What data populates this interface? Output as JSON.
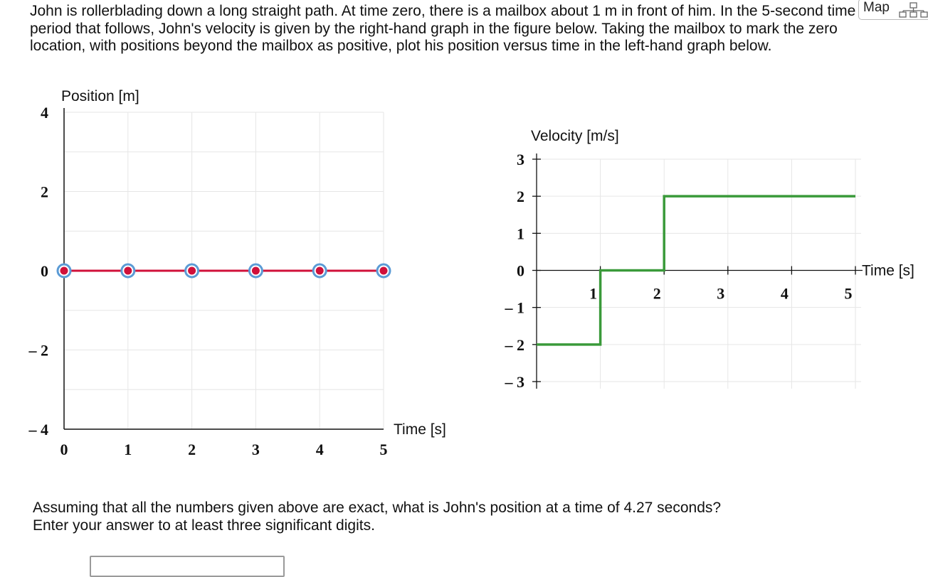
{
  "problem": {
    "text": "John is rollerblading down a long straight path. At time zero, there is a mailbox about 1 m in front of him. In the 5-second time period that follows, John's velocity is given by the right-hand graph in the figure below. Taking the mailbox to mark the zero location, with positions beyond the mailbox as positive, plot his position versus time in the left-hand graph below."
  },
  "map_button": {
    "label": "Map",
    "icon": "sitemap-icon"
  },
  "question": {
    "line1": "Assuming that all the numbers given above are exact, what is John's position at a time of 4.27 seconds?",
    "line2": "Enter your answer to at least three significant digits."
  },
  "answer_input": {
    "value": ""
  },
  "chart_data": [
    {
      "type": "line",
      "role": "editable position plot",
      "title": "",
      "ylabel": "Position [m]",
      "xlabel": "Time [s]",
      "xlim": [
        0,
        5
      ],
      "ylim": [
        -4,
        4
      ],
      "x_ticks": [
        "0",
        "1",
        "2",
        "3",
        "4",
        "5"
      ],
      "y_ticks": [
        "4",
        "2",
        "0",
        "– 2",
        "– 4"
      ],
      "grid": true,
      "series": [
        {
          "x": [
            0,
            1,
            2,
            3,
            4,
            5
          ],
          "y": [
            0,
            0,
            0,
            0,
            0,
            0
          ],
          "color": "#d0103a",
          "handle_color": "#5b9bd5"
        }
      ]
    },
    {
      "type": "line",
      "role": "given velocity graph",
      "title": "",
      "ylabel": "Velocity [m/s]",
      "xlabel": "Time [s]",
      "xlim": [
        0,
        5
      ],
      "ylim": [
        -3,
        3
      ],
      "x_ticks": [
        "1",
        "2",
        "3",
        "4",
        "5"
      ],
      "y_ticks": [
        "3",
        "2",
        "1",
        "0",
        "– 1",
        "– 2",
        "– 3"
      ],
      "grid": true,
      "series": [
        {
          "x": [
            0,
            1,
            1,
            2,
            2,
            5
          ],
          "y": [
            -2,
            -2,
            0,
            0,
            2,
            2
          ],
          "color": "#3a9a3a"
        }
      ]
    }
  ]
}
